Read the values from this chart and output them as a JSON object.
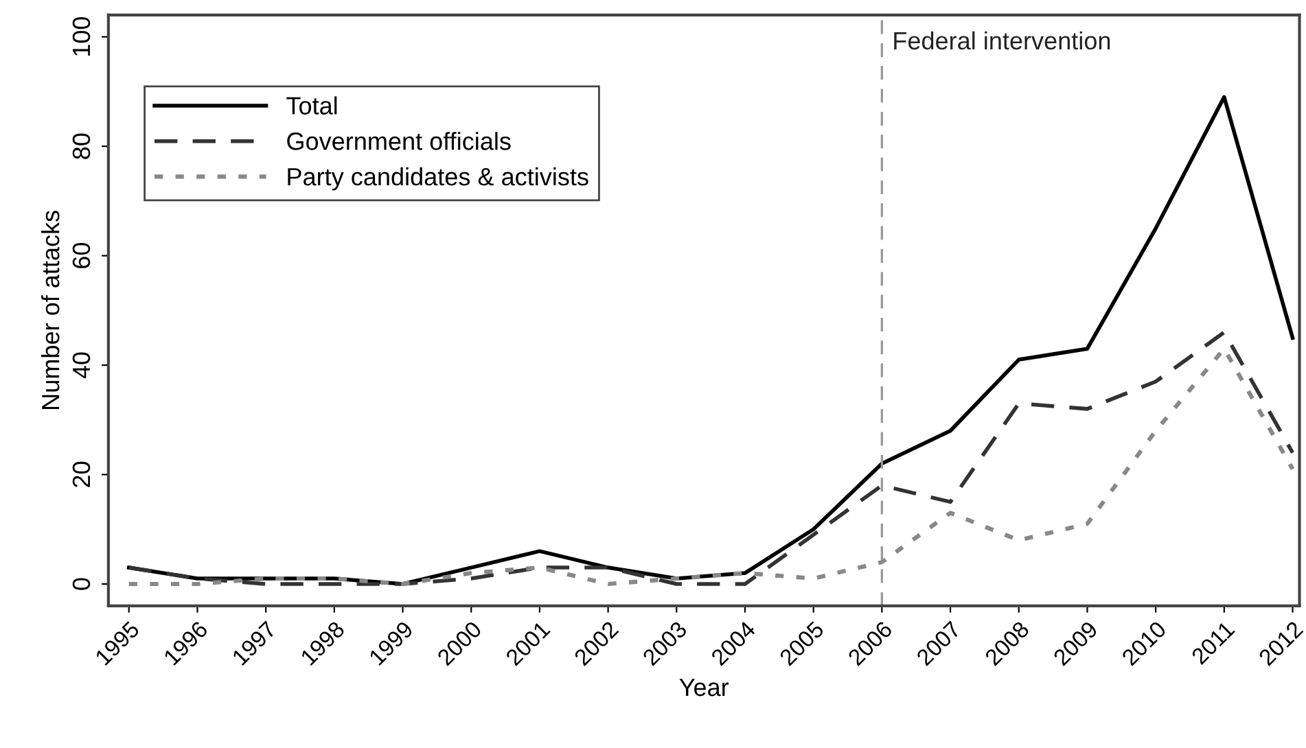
{
  "chart_data": {
    "type": "line",
    "xlabel": "Year",
    "ylabel": "Number of attacks",
    "x": [
      1995,
      1996,
      1997,
      1998,
      1999,
      2000,
      2001,
      2002,
      2003,
      2004,
      2005,
      2006,
      2007,
      2008,
      2009,
      2010,
      2011,
      2012
    ],
    "series": [
      {
        "name": "Total",
        "color": "#000000",
        "line_style": "solid",
        "values": [
          3,
          1,
          1,
          1,
          0,
          3,
          6,
          3,
          1,
          2,
          10,
          22,
          28,
          41,
          43,
          65,
          89,
          45
        ]
      },
      {
        "name": "Government officials",
        "color": "#333333",
        "line_style": "dashed",
        "values": [
          3,
          1,
          0,
          0,
          0,
          1,
          3,
          3,
          0,
          0,
          9,
          18,
          15,
          33,
          32,
          37,
          46,
          24
        ]
      },
      {
        "name": "Party candidates & activists",
        "color": "#888888",
        "line_style": "dotted",
        "values": [
          0,
          0,
          1,
          1,
          0,
          2,
          3,
          0,
          1,
          2,
          1,
          4,
          13,
          8,
          11,
          28,
          43,
          21
        ]
      }
    ],
    "xlim": [
      1994.7,
      2012.1
    ],
    "xticks": [
      1995,
      1996,
      1997,
      1998,
      1999,
      2000,
      2001,
      2002,
      2003,
      2004,
      2005,
      2006,
      2007,
      2008,
      2009,
      2010,
      2011,
      2012
    ],
    "ylim": [
      -4,
      104
    ],
    "yticks": [
      0,
      20,
      40,
      60,
      80,
      100
    ],
    "ref_lines": [
      {
        "axis": "x",
        "value": 2006,
        "label": "Federal intervention",
        "color": "#999999",
        "line_style": "dashed"
      }
    ],
    "legend": "top left",
    "grid": false,
    "marker": "none"
  }
}
